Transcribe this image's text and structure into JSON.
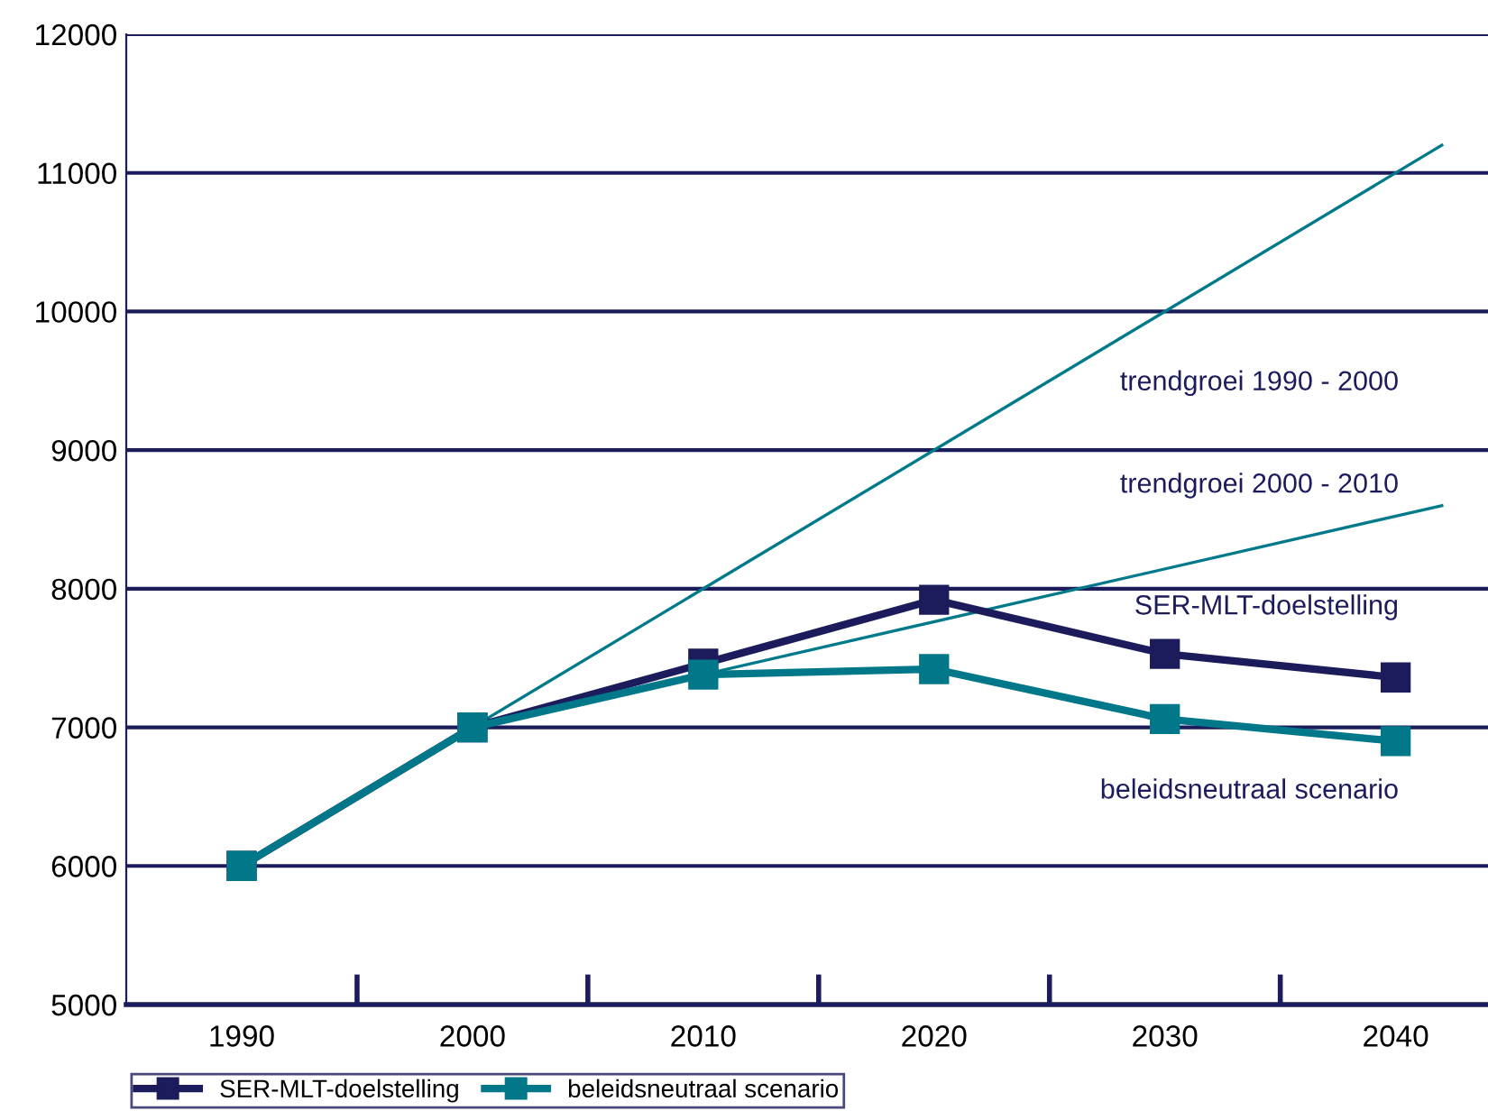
{
  "chart_data": {
    "type": "line",
    "xlim": [
      1985,
      2044
    ],
    "ylim": [
      5000,
      12000
    ],
    "xticks": [
      1990,
      2000,
      2010,
      2020,
      2030,
      2040
    ],
    "yticks": [
      5000,
      6000,
      7000,
      8000,
      9000,
      10000,
      11000,
      12000
    ],
    "grid": "y",
    "legend": "bottom",
    "series": [
      {
        "name": "trendgroei 1990 - 2000",
        "color": "#007a8a",
        "x": [
          1990,
          2042
        ],
        "values": [
          6000,
          11200
        ]
      },
      {
        "name": "trendgroei 2000 - 2010",
        "color": "#007a8a",
        "x": [
          2000,
          2042
        ],
        "values": [
          7000,
          8600
        ]
      },
      {
        "name": "SER-MLT-doelstelling",
        "color": "#1c1c5c",
        "x": [
          1990,
          2000,
          2010,
          2020,
          2030,
          2040
        ],
        "values": [
          6000,
          7000,
          7460,
          7920,
          7530,
          7360
        ],
        "marker": "square"
      },
      {
        "name": "beleidsneutraal scenario",
        "color": "#00788a",
        "x": [
          1990,
          2000,
          2010,
          2020,
          2030,
          2040
        ],
        "values": [
          6000,
          7000,
          7380,
          7420,
          7060,
          6900
        ],
        "marker": "square"
      }
    ]
  }
}
